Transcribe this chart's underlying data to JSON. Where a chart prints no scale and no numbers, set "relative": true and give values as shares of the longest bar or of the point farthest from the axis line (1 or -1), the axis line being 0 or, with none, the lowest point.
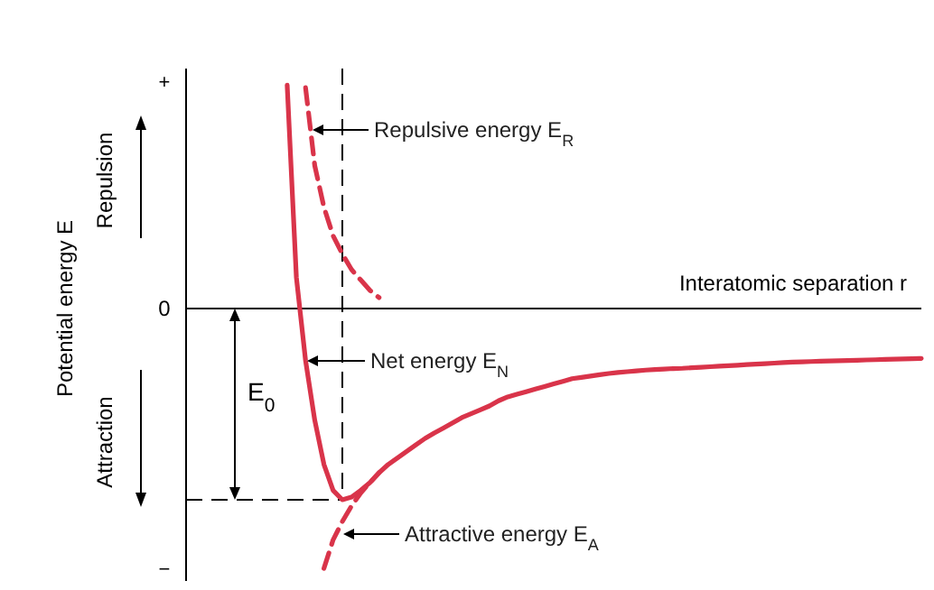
{
  "chart_data": {
    "type": "line",
    "relative": true,
    "xlabel": "Interatomic separation r",
    "ylabel": "Potential energy E",
    "categories": [
      null,
      null,
      null,
      null,
      null,
      null,
      null,
      null,
      null,
      null,
      null,
      null,
      null,
      null,
      null,
      null,
      null,
      null,
      null,
      null,
      null,
      null,
      null,
      null,
      null,
      null,
      null,
      null,
      null,
      null,
      null,
      null,
      null,
      null,
      null,
      null,
      null,
      null,
      null,
      null,
      null,
      null,
      null,
      null,
      null,
      null,
      null,
      null,
      null,
      null,
      null,
      null,
      null,
      null,
      null,
      null,
      null,
      null,
      null,
      null,
      null,
      null,
      null,
      null,
      null,
      null,
      null,
      null,
      null,
      null,
      null,
      null,
      null,
      null,
      null,
      null,
      null,
      null,
      null,
      null,
      null
    ],
    "series": [
      {
        "name": "Repulsive energy E$_{R}$",
        "color": "#d9344a",
        "line_style": "dashed",
        "values": [
          null,
          null,
          null,
          null,
          null,
          null,
          null,
          null,
          null,
          null,
          null,
          null,
          null,
          0.85,
          0.55,
          0.39,
          0.28,
          0.21,
          0.15,
          0.11,
          0.07,
          0.042,
          null,
          null,
          null,
          null,
          null,
          null,
          null,
          null,
          null,
          null,
          null,
          null,
          null,
          null,
          null,
          null,
          null,
          null,
          null,
          null,
          null,
          null,
          null,
          null,
          null,
          null,
          null,
          null,
          null,
          null,
          null,
          null,
          null,
          null,
          null,
          null,
          null,
          null,
          null,
          null,
          null,
          null,
          null,
          null,
          null,
          null,
          null,
          null,
          null,
          null,
          null,
          null,
          null,
          null,
          null,
          null,
          null,
          null,
          null
        ]
      },
      {
        "name": "Net energy E$_{N}$",
        "color": "#d9344a",
        "line_style": "solid",
        "values": [
          null,
          null,
          null,
          null,
          null,
          null,
          null,
          null,
          null,
          null,
          null,
          0.86,
          0.12,
          -0.2,
          -0.43,
          -0.6,
          -0.7,
          -0.736,
          -0.726,
          -0.7,
          -0.67,
          -0.632,
          -0.6,
          -0.575,
          -0.55,
          -0.525,
          -0.5,
          -0.479,
          -0.46,
          -0.44,
          -0.42,
          -0.405,
          -0.39,
          -0.375,
          -0.355,
          -0.34,
          -0.33,
          -0.32,
          -0.31,
          -0.3,
          -0.29,
          -0.28,
          -0.27,
          -0.265,
          -0.26,
          -0.255,
          -0.25,
          -0.246,
          -0.243,
          -0.24,
          -0.237,
          -0.235,
          -0.233,
          -0.231,
          -0.23,
          -0.228,
          -0.226,
          -0.224,
          -0.222,
          -0.22,
          -0.218,
          -0.216,
          -0.214,
          -0.212,
          -0.21,
          -0.208,
          -0.206,
          -0.205,
          -0.204,
          -0.203,
          -0.202,
          -0.201,
          -0.2,
          -0.199,
          -0.198,
          -0.197,
          -0.196,
          -0.195,
          -0.194,
          -0.193,
          -0.192
        ]
      },
      {
        "name": "Attractive energy E$_{A}$",
        "color": "#d9344a",
        "line_style": "dashed",
        "values": [
          null,
          null,
          null,
          null,
          null,
          null,
          null,
          null,
          null,
          null,
          null,
          null,
          null,
          null,
          null,
          -1,
          -0.89,
          -0.82,
          -0.76,
          -0.71,
          -0.67,
          -0.632,
          null,
          null,
          null,
          null,
          null,
          null,
          null,
          null,
          null,
          null,
          null,
          null,
          null,
          null,
          null,
          null,
          null,
          null,
          null,
          null,
          null,
          null,
          null,
          null,
          null,
          null,
          null,
          null,
          null,
          null,
          null,
          null,
          null,
          null,
          null,
          null,
          null,
          null,
          null,
          null,
          null,
          null,
          null,
          null,
          null,
          null,
          null,
          null,
          null,
          null,
          null,
          null,
          null,
          null,
          null,
          null,
          null,
          null,
          null
        ]
      }
    ],
    "ref_lines": [
      {
        "axis": "y",
        "value": -0.736,
        "color": "#000000",
        "line_style": "dashed"
      }
    ],
    "annotations": [
      "E$_{0}$",
      "+",
      "0",
      "−",
      "Repulsion",
      "Attraction"
    ]
  }
}
